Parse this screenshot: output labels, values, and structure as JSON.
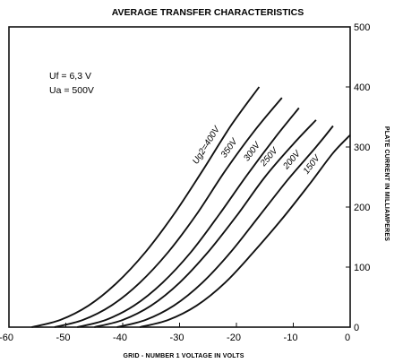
{
  "chart_data": {
    "type": "line",
    "title": "AVERAGE TRANSFER CHARACTERISTICS",
    "xlabel": "GRID - NUMBER 1 VOLTAGE IN VOLTS",
    "ylabel": "PLATE CURRENT IN MILLIAMPERES",
    "xlim": [
      -60,
      0
    ],
    "ylim": [
      0,
      500
    ],
    "x_ticks": [
      "-60",
      "-50",
      "-40",
      "-30",
      "-20",
      "-10",
      "0"
    ],
    "y_ticks": [
      "0",
      "100",
      "200",
      "300",
      "400",
      "500"
    ],
    "grid": false,
    "notes": [
      "Uf = 6,3 V",
      "Ua = 500V"
    ],
    "series": [
      {
        "name": "Ug2=400V",
        "points": [
          [
            -56,
            0
          ],
          [
            -51,
            12
          ],
          [
            -46,
            36
          ],
          [
            -41,
            74
          ],
          [
            -36,
            125
          ],
          [
            -31,
            188
          ],
          [
            -26,
            260
          ],
          [
            -21,
            335
          ],
          [
            -16,
            400
          ]
        ]
      },
      {
        "name": "350V",
        "points": [
          [
            -52,
            0
          ],
          [
            -47,
            12
          ],
          [
            -42,
            36
          ],
          [
            -37,
            74
          ],
          [
            -32,
            125
          ],
          [
            -27,
            188
          ],
          [
            -22,
            260
          ],
          [
            -17,
            325
          ],
          [
            -12,
            382
          ]
        ]
      },
      {
        "name": "300V",
        "points": [
          [
            -48,
            0
          ],
          [
            -43,
            12
          ],
          [
            -38,
            36
          ],
          [
            -33,
            74
          ],
          [
            -28,
            125
          ],
          [
            -23,
            188
          ],
          [
            -18,
            255
          ],
          [
            -13,
            318
          ],
          [
            -9,
            365
          ]
        ]
      },
      {
        "name": "250V",
        "points": [
          [
            -45,
            0
          ],
          [
            -40,
            12
          ],
          [
            -35,
            36
          ],
          [
            -30,
            74
          ],
          [
            -25,
            125
          ],
          [
            -20,
            185
          ],
          [
            -15,
            250
          ],
          [
            -10,
            305
          ],
          [
            -6,
            345
          ]
        ]
      },
      {
        "name": "200V",
        "points": [
          [
            -41,
            0
          ],
          [
            -36,
            12
          ],
          [
            -31,
            36
          ],
          [
            -26,
            74
          ],
          [
            -21,
            125
          ],
          [
            -16,
            185
          ],
          [
            -11,
            245
          ],
          [
            -6,
            300
          ],
          [
            -3,
            335
          ]
        ]
      },
      {
        "name": "150V",
        "points": [
          [
            -37,
            0
          ],
          [
            -32,
            12
          ],
          [
            -27,
            36
          ],
          [
            -22,
            74
          ],
          [
            -17,
            125
          ],
          [
            -12,
            180
          ],
          [
            -7,
            240
          ],
          [
            -3,
            290
          ],
          [
            0,
            320
          ]
        ]
      }
    ]
  }
}
